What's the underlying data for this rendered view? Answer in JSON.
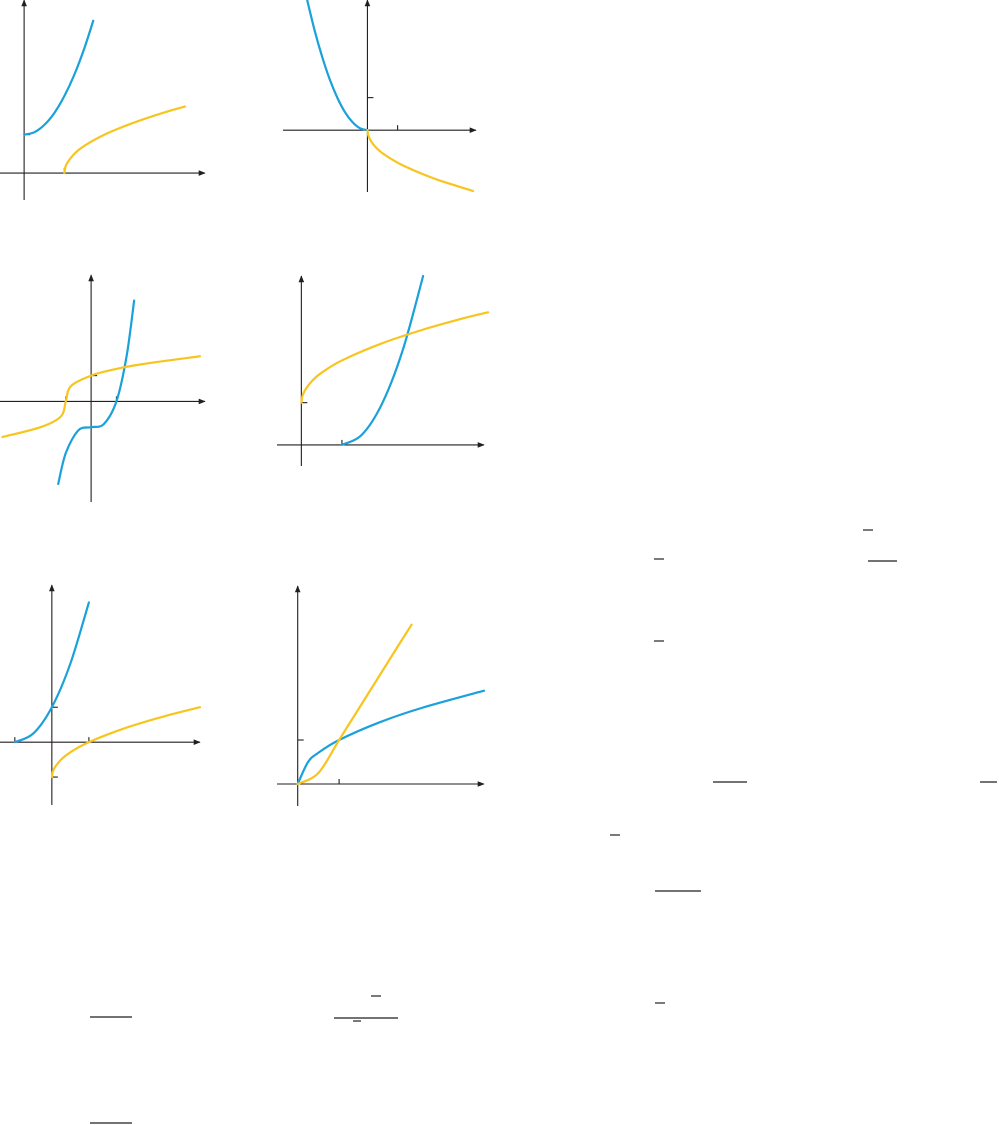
{
  "chart_data": [
    {
      "type": "line",
      "x_range": [
        -0.6,
        4.5
      ],
      "y_range": [
        -0.7,
        4.5
      ],
      "grid": false,
      "series": [
        {
          "color": "#1aa1db",
          "x": [
            0,
            0.25,
            0.5,
            0.75,
            1.0,
            1.25,
            1.5,
            1.72
          ],
          "y": [
            1.0,
            1.06,
            1.25,
            1.56,
            2.0,
            2.56,
            3.25,
            3.96
          ]
        },
        {
          "color": "#f7c51e",
          "x": [
            1.0,
            1.05,
            1.25,
            1.5,
            2.0,
            2.5,
            3.0,
            3.5,
            4.0
          ],
          "y": [
            0,
            0.22,
            0.5,
            0.71,
            1.0,
            1.22,
            1.41,
            1.58,
            1.73
          ]
        }
      ],
      "ticks": {
        "x": [
          1
        ],
        "y": [
          1
        ]
      }
    },
    {
      "type": "line",
      "x_range": [
        -2.8,
        3.6
      ],
      "y_range": [
        -1.9,
        4.0
      ],
      "grid": false,
      "series": [
        {
          "color": "#1aa1db",
          "x": [
            -2.05,
            -1.75,
            -1.5,
            -1.25,
            -1.0,
            -0.75,
            -0.5,
            -0.25,
            0
          ],
          "y": [
            4.2,
            3.06,
            2.25,
            1.56,
            1.0,
            0.56,
            0.25,
            0.06,
            0
          ]
        },
        {
          "color": "#f7c51e",
          "x": [
            0,
            0.05,
            0.25,
            0.5,
            1.0,
            1.5,
            2.0,
            2.5,
            3.5
          ],
          "y": [
            0,
            -0.22,
            -0.5,
            -0.71,
            -1.0,
            -1.22,
            -1.41,
            -1.58,
            -1.87
          ]
        }
      ],
      "ticks": {
        "x": [
          1
        ],
        "y": [
          1
        ]
      }
    },
    {
      "type": "line",
      "x_range": [
        -3.6,
        4.5
      ],
      "y_range": [
        -3.9,
        4.9
      ],
      "grid": false,
      "series": [
        {
          "color": "#1aa1db",
          "x": [
            -1.3,
            -1.0,
            -0.5,
            0,
            0.5,
            1.0,
            1.4,
            1.7
          ],
          "y": [
            -3.2,
            -2.0,
            -1.12,
            -1.0,
            -0.88,
            0,
            1.74,
            3.91
          ]
        },
        {
          "color": "#f7c51e",
          "x": [
            -3.5,
            -2.0,
            -1.2,
            -1.0,
            -0.8,
            0,
            1.0,
            2.0,
            4.3
          ],
          "y": [
            -1.38,
            -1.0,
            -0.59,
            0,
            0.59,
            1.0,
            1.26,
            1.44,
            1.75
          ]
        }
      ],
      "ticks": {
        "x": [
          -1,
          1
        ],
        "y": [
          1
        ]
      }
    },
    {
      "type": "line",
      "x_range": [
        -0.6,
        4.5
      ],
      "y_range": [
        -0.5,
        4.0
      ],
      "grid": false,
      "series": [
        {
          "color": "#1aa1db",
          "x": [
            1.0,
            1.5,
            2.0,
            2.5,
            3.0
          ],
          "y": [
            0,
            0.25,
            1.0,
            2.25,
            4.0
          ]
        },
        {
          "color": "#f7c51e",
          "x": [
            0,
            0.05,
            0.25,
            0.5,
            1.0,
            2.0,
            3.0,
            4.0,
            4.6
          ],
          "y": [
            1.0,
            1.22,
            1.5,
            1.71,
            2.0,
            2.41,
            2.73,
            3.0,
            3.14
          ]
        }
      ],
      "ticks": {
        "x": [
          1
        ],
        "y": [
          1
        ]
      }
    },
    {
      "type": "line",
      "x_range": [
        -1.4,
        4.0
      ],
      "y_range": [
        -1.8,
        4.5
      ],
      "grid": false,
      "series": [
        {
          "color": "#1aa1db",
          "x": [
            -1.0,
            -0.5,
            0,
            0.5,
            1.0
          ],
          "y": [
            0,
            0.25,
            1.0,
            2.25,
            4.0
          ]
        },
        {
          "color": "#f7c51e",
          "x": [
            0,
            0.05,
            0.25,
            0.5,
            1.0,
            2.0,
            3.0,
            4.0
          ],
          "y": [
            -1.0,
            -0.78,
            -0.5,
            -0.29,
            0,
            0.41,
            0.73,
            1.0
          ]
        }
      ],
      "ticks": {
        "x": [
          -1,
          1
        ],
        "y": [
          1,
          -1
        ]
      }
    },
    {
      "type": "line",
      "x_range": [
        -0.5,
        4.5
      ],
      "y_range": [
        -0.5,
        4.5
      ],
      "grid": false,
      "series": [
        {
          "color": "#1aa1db",
          "x": [
            0,
            0.25,
            0.5,
            1.0,
            2.0,
            3.0,
            4.5
          ],
          "y": [
            0,
            0.5,
            0.71,
            1.0,
            1.41,
            1.73,
            2.12
          ]
        },
        {
          "color": "#f7c51e",
          "x": [
            0,
            0.5,
            1.0,
            1.5,
            2.0,
            2.5,
            2.75
          ],
          "y": [
            0,
            0.25,
            1.0,
            1.75,
            2.5,
            3.25,
            3.62
          ]
        }
      ],
      "ticks": {
        "x": [
          1
        ],
        "y": [
          1
        ]
      }
    }
  ]
}
